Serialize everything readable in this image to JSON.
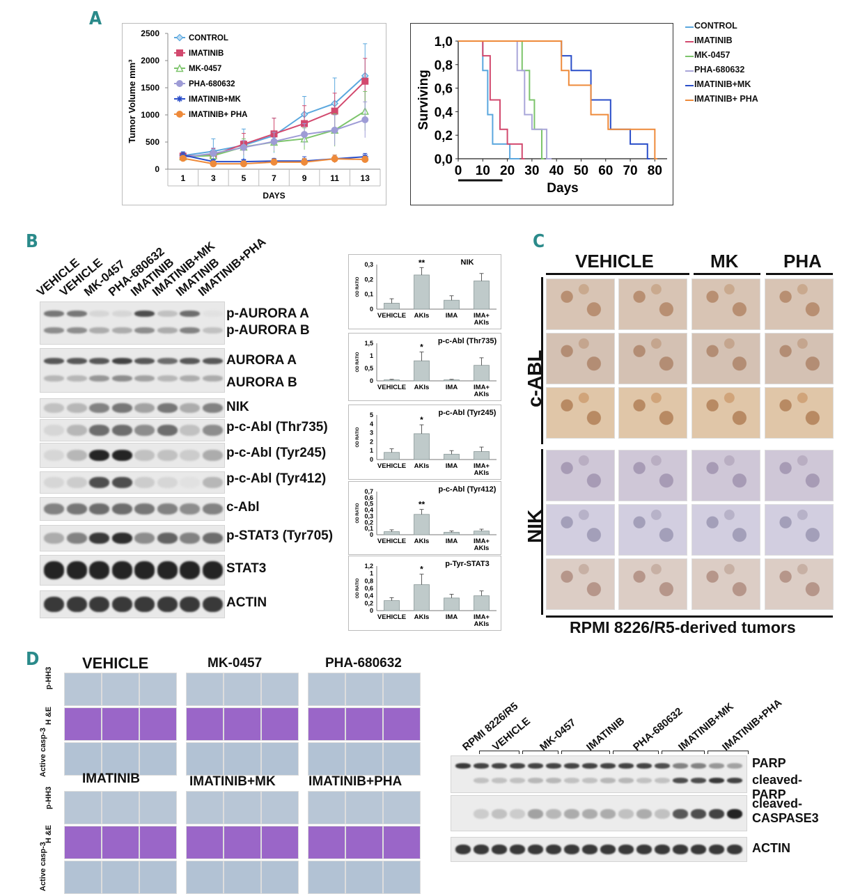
{
  "panels": {
    "a": "A",
    "b": "B",
    "c": "C",
    "d": "D"
  },
  "chart_data": [
    {
      "type": "line",
      "xlabel": "DAYS",
      "ylabel": "Tumor Volume mm³",
      "categories": [
        "1",
        "3",
        "5",
        "7",
        "9",
        "11",
        "13"
      ],
      "yticks": [
        "0",
        "500",
        "1000",
        "1500",
        "2000",
        "2500"
      ],
      "ylim": [
        0,
        2500
      ],
      "legend": "top-left",
      "series": [
        {
          "name": "CONTROL",
          "color": "#5aa7de",
          "marker": "diamond",
          "values": [
            250,
            330,
            440,
            620,
            1010,
            1210,
            1720
          ],
          "errors": [
            60,
            230,
            300,
            320,
            330,
            470,
            590
          ]
        },
        {
          "name": "IMATINIB",
          "color": "#d2496e",
          "marker": "square",
          "values": [
            240,
            260,
            460,
            650,
            840,
            1070,
            1620
          ],
          "errors": [
            60,
            120,
            200,
            290,
            330,
            330,
            420
          ]
        },
        {
          "name": "MK-0457",
          "color": "#7cc46b",
          "marker": "triangle",
          "values": [
            230,
            250,
            410,
            500,
            560,
            720,
            1070
          ],
          "errors": [
            50,
            80,
            150,
            180,
            200,
            300,
            360
          ]
        },
        {
          "name": "PHA-680632",
          "color": "#9e9cd6",
          "marker": "circle",
          "values": [
            220,
            290,
            400,
            510,
            640,
            720,
            910
          ],
          "errors": [
            50,
            100,
            130,
            170,
            200,
            280,
            330
          ]
        },
        {
          "name": "IMATINIB+MK",
          "color": "#2a4ec9",
          "marker": "star",
          "values": [
            260,
            140,
            140,
            150,
            150,
            190,
            230
          ],
          "errors": [
            60,
            40,
            40,
            50,
            80,
            70,
            60
          ]
        },
        {
          "name": "IMATINIB+ PHA",
          "color": "#ee8a3a",
          "marker": "circle",
          "values": [
            200,
            100,
            100,
            130,
            130,
            190,
            180
          ],
          "errors": [
            40,
            40,
            50,
            60,
            70,
            70,
            60
          ]
        }
      ]
    },
    {
      "type": "line",
      "xlabel": "Days",
      "ylabel": "Surviving",
      "xticks": [
        "0",
        "10",
        "20",
        "30",
        "40",
        "50",
        "60",
        "70",
        "80"
      ],
      "yticks": [
        "0,0",
        "0,2",
        "0,4",
        "0,6",
        "0,8",
        "1,0"
      ],
      "xlim": [
        0,
        85
      ],
      "ylim": [
        0,
        1
      ],
      "legend": "right",
      "series": [
        {
          "name": "CONTROL",
          "color": "#5aa7de",
          "x": [
            0,
            10,
            10,
            12,
            12,
            14,
            14,
            17,
            17,
            21,
            21,
            25
          ],
          "y": [
            1,
            1,
            0.75,
            0.75,
            0.375,
            0.375,
            0.125,
            0.125,
            0.125,
            0.125,
            0,
            0
          ]
        },
        {
          "name": "IMATINIB",
          "color": "#d2496e",
          "x": [
            0,
            10,
            10,
            13,
            13,
            17,
            17,
            20,
            20,
            26,
            26,
            27
          ],
          "y": [
            1,
            1,
            0.875,
            0.875,
            0.5,
            0.5,
            0.25,
            0.25,
            0.125,
            0.125,
            0,
            0
          ]
        },
        {
          "name": "MK-0457",
          "color": "#7cc46b",
          "x": [
            0,
            26,
            26,
            29,
            29,
            31,
            31,
            34,
            34,
            35
          ],
          "y": [
            1,
            1,
            0.75,
            0.75,
            0.5,
            0.5,
            0.25,
            0.25,
            0,
            0
          ]
        },
        {
          "name": "PHA-680632",
          "color": "#a9a6d9",
          "x": [
            0,
            24,
            24,
            27,
            27,
            30,
            30,
            36,
            36,
            38
          ],
          "y": [
            1,
            1,
            0.75,
            0.75,
            0.375,
            0.375,
            0.25,
            0.25,
            0,
            0
          ]
        },
        {
          "name": "IMATINIB+MK",
          "color": "#2a4ec9",
          "x": [
            0,
            42,
            42,
            46,
            46,
            54,
            54,
            62,
            62,
            70,
            70,
            77,
            77,
            78
          ],
          "y": [
            1,
            1,
            0.875,
            0.875,
            0.75,
            0.75,
            0.5,
            0.5,
            0.25,
            0.25,
            0.125,
            0.125,
            0,
            0
          ]
        },
        {
          "name": "IMATINIB+ PHA",
          "color": "#ee8a3a",
          "x": [
            0,
            42,
            42,
            45,
            45,
            54,
            54,
            61,
            61,
            69,
            69,
            78,
            78,
            80,
            80,
            81
          ],
          "y": [
            1,
            1,
            0.75,
            0.75,
            0.625,
            0.625,
            0.375,
            0.375,
            0.25,
            0.25,
            0.25,
            0.25,
            0.25,
            0.25,
            0,
            0
          ]
        }
      ]
    },
    {
      "type": "bar",
      "title": "NIK",
      "ylabel": "OD RATIO",
      "categories": [
        "VEHICLE",
        "AKIs",
        "IMA",
        "IMA+ AKIs"
      ],
      "values": [
        0.04,
        0.23,
        0.06,
        0.19
      ],
      "errors": [
        0.03,
        0.05,
        0.03,
        0.05
      ],
      "yticks": [
        "0",
        "0,1",
        "0,2",
        "0,3"
      ],
      "ylim": [
        0,
        0.3
      ],
      "stars": [
        "",
        "**",
        "",
        ""
      ]
    },
    {
      "type": "bar",
      "title": "p-c-Abl (Thr735)",
      "ylabel": "OD RATIO",
      "categories": [
        "VEHICLE",
        "AKIs",
        "IMA",
        "IMA+ AKIs"
      ],
      "values": [
        0.04,
        0.8,
        0.04,
        0.62
      ],
      "errors": [
        0.02,
        0.35,
        0.02,
        0.3
      ],
      "yticks": [
        "0",
        "0,5",
        "1",
        "1,5"
      ],
      "ylim": [
        0,
        1.5
      ],
      "stars": [
        "",
        "*",
        "",
        ""
      ]
    },
    {
      "type": "bar",
      "title": "p-c-Abl (Tyr245)",
      "ylabel": "OD RATIO",
      "categories": [
        "VEHICLE",
        "AKIs",
        "IMA",
        "IMA+ AKIs"
      ],
      "values": [
        0.8,
        2.9,
        0.6,
        0.9
      ],
      "errors": [
        0.4,
        1.0,
        0.4,
        0.5
      ],
      "yticks": [
        "0",
        "1",
        "2",
        "3",
        "4",
        "5"
      ],
      "ylim": [
        0,
        5
      ],
      "stars": [
        "",
        "*",
        "",
        ""
      ]
    },
    {
      "type": "bar",
      "title": "p-c-Abl (Tyr412)",
      "ylabel": "OD RATIO",
      "categories": [
        "VEHICLE",
        "AKIs",
        "IMA",
        "IMA+ AKIs"
      ],
      "values": [
        0.05,
        0.33,
        0.04,
        0.06
      ],
      "errors": [
        0.03,
        0.08,
        0.02,
        0.03
      ],
      "yticks": [
        "0",
        "0,1",
        "0,2",
        "0,3",
        "0,4",
        "0,5",
        "0,6",
        "0,7"
      ],
      "ylim": [
        0,
        0.7
      ],
      "stars": [
        "",
        "**",
        "",
        ""
      ]
    },
    {
      "type": "bar",
      "title": "p-Tyr-STAT3",
      "ylabel": "OD RATIO",
      "categories": [
        "VEHICLE",
        "AKIs",
        "IMA",
        "IMA+ AKIs"
      ],
      "values": [
        0.27,
        0.7,
        0.34,
        0.4
      ],
      "errors": [
        0.08,
        0.28,
        0.1,
        0.13
      ],
      "yticks": [
        "0",
        "0,2",
        "0,4",
        "0,6",
        "0,8",
        "1",
        "1,2"
      ],
      "ylim": [
        0,
        1.2
      ],
      "stars": [
        "",
        "*",
        "",
        ""
      ]
    }
  ],
  "panel_b": {
    "lanes": [
      "VEHICLE",
      "VEHICLE",
      "MK-0457",
      "PHA-680632",
      "IMATINIB",
      "IMATINIB+MK",
      "IMATINIB",
      "IMATINIB+PHA"
    ],
    "bands": [
      "p-AURORA A",
      "p-AURORA B",
      "AURORA A",
      "AURORA B",
      "NIK",
      "p-c-Abl (Thr735)",
      "p-c-Abl (Tyr245)",
      "p-c-Abl (Tyr412)",
      "c-Abl",
      "p-STAT3 (Tyr705)",
      "STAT3",
      "ACTIN"
    ]
  },
  "panel_c": {
    "columns": [
      "VEHICLE",
      "MK",
      "PHA"
    ],
    "rows": [
      "c-ABL",
      "NIK"
    ],
    "caption": "RPMI 8226/R5-derived tumors"
  },
  "panel_d": {
    "groups": [
      "VEHICLE",
      "MK-0457",
      "PHA-680632",
      "IMATINIB",
      "IMATINIB+MK",
      "IMATINIB+PHA"
    ],
    "row_labels": [
      "p-HH3",
      "H &E",
      "Active casp-3"
    ],
    "lanes": [
      "RPMI 8226/R5",
      "VEHICLE",
      "MK-0457",
      "IMATINIB",
      "PHA-680632",
      "IMATINIB+MK",
      "IMATINIB+PHA"
    ],
    "bands": [
      "PARP",
      "cleaved-PARP",
      "cleaved- CASPASE3",
      "ACTIN"
    ]
  }
}
